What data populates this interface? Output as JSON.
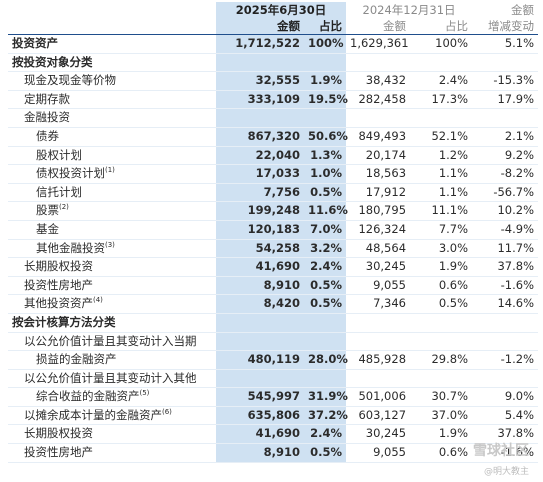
{
  "header": {
    "period_current": "2025年6月30日",
    "period_prior": "2024年12月31日",
    "change_top": "金额",
    "columns": [
      "金额",
      "占比",
      "金额",
      "占比",
      "增减变动"
    ]
  },
  "table": {
    "rows": [
      {
        "label": "投资资产",
        "cells": [
          "1,712,522",
          "100%",
          "1,629,361",
          "100%",
          "5.1%"
        ]
      },
      {
        "label": "按投资对象分类"
      },
      {
        "label": "现金及现金等价物",
        "cells": [
          "32,555",
          "1.9%",
          "38,432",
          "2.4%",
          "-15.3%"
        ]
      },
      {
        "label": "定期存款",
        "cells": [
          "333,109",
          "19.5%",
          "282,458",
          "17.3%",
          "17.9%"
        ]
      },
      {
        "label": "金融投资"
      },
      {
        "label": "债券",
        "cells": [
          "867,320",
          "50.6%",
          "849,493",
          "52.1%",
          "2.1%"
        ]
      },
      {
        "label": "股权计划",
        "cells": [
          "22,040",
          "1.3%",
          "20,174",
          "1.2%",
          "9.2%"
        ]
      },
      {
        "label": "债权投资计划",
        "note": "(1)",
        "cells": [
          "17,033",
          "1.0%",
          "18,563",
          "1.1%",
          "-8.2%"
        ]
      },
      {
        "label": "信托计划",
        "cells": [
          "7,756",
          "0.5%",
          "17,912",
          "1.1%",
          "-56.7%"
        ]
      },
      {
        "label": "股票",
        "note": "(2)",
        "cells": [
          "199,248",
          "11.6%",
          "180,795",
          "11.1%",
          "10.2%"
        ]
      },
      {
        "label": "基金",
        "cells": [
          "120,183",
          "7.0%",
          "126,324",
          "7.7%",
          "-4.9%"
        ]
      },
      {
        "label": "其他金融投资",
        "note": "(3)",
        "cells": [
          "54,258",
          "3.2%",
          "48,564",
          "3.0%",
          "11.7%"
        ]
      },
      {
        "label": "长期股权投资",
        "cells": [
          "41,690",
          "2.4%",
          "30,245",
          "1.9%",
          "37.8%"
        ]
      },
      {
        "label": "投资性房地产",
        "cells": [
          "8,910",
          "0.5%",
          "9,055",
          "0.6%",
          "-1.6%"
        ]
      },
      {
        "label": "其他投资资产",
        "note": "(4)",
        "cells": [
          "8,420",
          "0.5%",
          "7,346",
          "0.5%",
          "14.6%"
        ]
      },
      {
        "label": "按会计核算方法分类"
      },
      {
        "label": "以公允价值计量且其变动计入当期"
      },
      {
        "label": "损益的金融资产",
        "cells": [
          "480,119",
          "28.0%",
          "485,928",
          "29.8%",
          "-1.2%"
        ]
      },
      {
        "label": "以公允价值计量且其变动计入其他"
      },
      {
        "label": "综合收益的金融资产",
        "note": "(5)",
        "cells": [
          "545,997",
          "31.9%",
          "501,006",
          "30.7%",
          "9.0%"
        ]
      },
      {
        "label": "以摊余成本计量的金融资产",
        "note": "(6)",
        "cells": [
          "635,806",
          "37.2%",
          "603,127",
          "37.0%",
          "5.4%"
        ]
      },
      {
        "label": "长期股权投资",
        "cells": [
          "41,690",
          "2.4%",
          "30,245",
          "1.9%",
          "37.8%"
        ]
      },
      {
        "label": "投资性房地产",
        "cells": [
          "8,910",
          "0.5%",
          "9,055",
          "0.6%",
          "-1.6%"
        ]
      }
    ]
  },
  "watermark": {
    "site": "雪球社区",
    "author": "@明大教主"
  }
}
